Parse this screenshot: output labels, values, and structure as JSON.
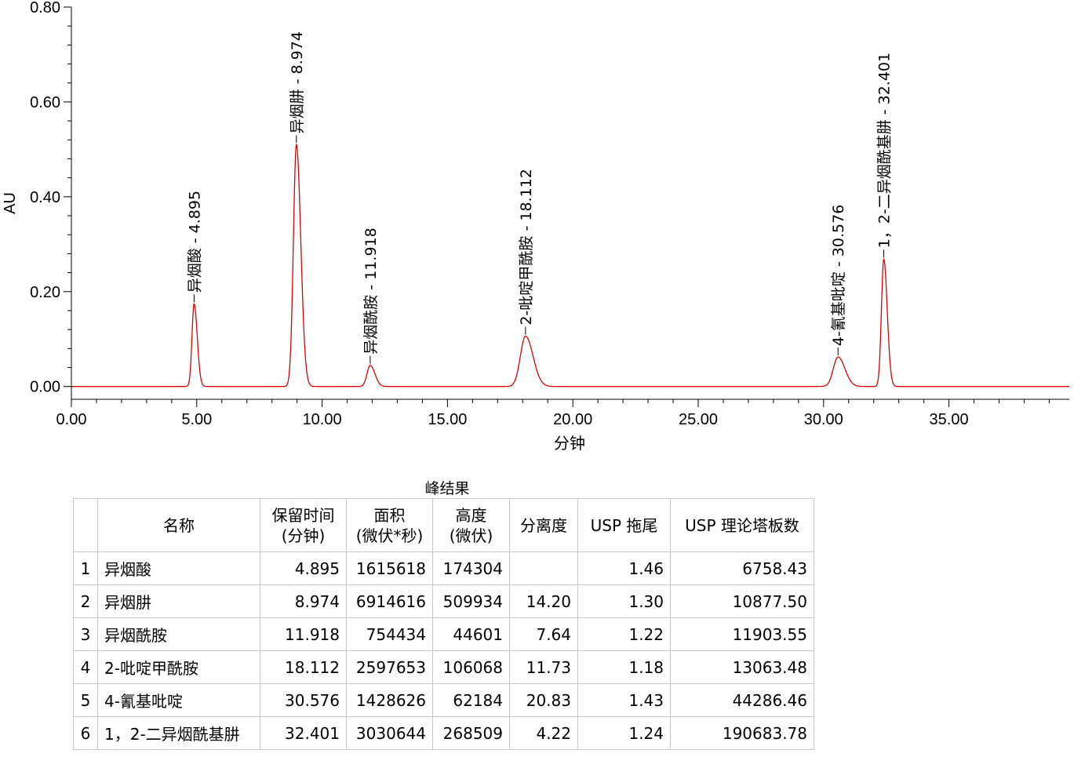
{
  "chart_data": {
    "type": "line",
    "title": "",
    "xlabel": "分钟",
    "ylabel": "AU",
    "xlim": [
      0,
      39.8
    ],
    "ylim": [
      -0.027,
      0.8
    ],
    "x_ticks": [
      "0.00",
      "5.00",
      "10.00",
      "15.00",
      "20.00",
      "25.00",
      "30.00",
      "35.00"
    ],
    "y_ticks": [
      "0.00",
      "0.20",
      "0.40",
      "0.60",
      "0.80"
    ],
    "grid": false,
    "line_color": "#dd0000",
    "peaks": [
      {
        "rt": 4.895,
        "height": 0.1743,
        "width": 0.1,
        "label": "异烟酸 - 4.895"
      },
      {
        "rt": 8.974,
        "height": 0.5099,
        "width": 0.14,
        "label": "异烟肼 - 8.974"
      },
      {
        "rt": 11.918,
        "height": 0.0446,
        "width": 0.15,
        "label": "异烟酰胺 - 11.918"
      },
      {
        "rt": 18.112,
        "height": 0.1061,
        "width": 0.24,
        "label": "2-吡啶甲酰胺 - 18.112"
      },
      {
        "rt": 30.576,
        "height": 0.0622,
        "width": 0.22,
        "label": "4-氰基吡啶 - 30.576"
      },
      {
        "rt": 32.401,
        "height": 0.2685,
        "width": 0.11,
        "label": "1，2-二异烟酰基肼 - 32.401"
      }
    ]
  },
  "table": {
    "title": "峰结果",
    "headers": {
      "name": "名称",
      "rt": "保留时间\n(分钟)",
      "area": "面积\n(微伏*秒)",
      "height": "高度\n(微伏)",
      "resolution": "分离度",
      "tailing": "USP 拖尾",
      "plates": "USP 理论塔板数"
    },
    "rows": [
      {
        "idx": "1",
        "name": "异烟酸",
        "rt": "4.895",
        "area": "1615618",
        "height": "174304",
        "resolution": "",
        "tailing": "1.46",
        "plates": "6758.43"
      },
      {
        "idx": "2",
        "name": "异烟肼",
        "rt": "8.974",
        "area": "6914616",
        "height": "509934",
        "resolution": "14.20",
        "tailing": "1.30",
        "plates": "10877.50"
      },
      {
        "idx": "3",
        "name": "异烟酰胺",
        "rt": "11.918",
        "area": "754434",
        "height": "44601",
        "resolution": "7.64",
        "tailing": "1.22",
        "plates": "11903.55"
      },
      {
        "idx": "4",
        "name": "2-吡啶甲酰胺",
        "rt": "18.112",
        "area": "2597653",
        "height": "106068",
        "resolution": "11.73",
        "tailing": "1.18",
        "plates": "13063.48"
      },
      {
        "idx": "5",
        "name": "4-氰基吡啶",
        "rt": "30.576",
        "area": "1428626",
        "height": "62184",
        "resolution": "20.83",
        "tailing": "1.43",
        "plates": "44286.46"
      },
      {
        "idx": "6",
        "name": "1，2-二异烟酰基肼",
        "rt": "32.401",
        "area": "3030644",
        "height": "268509",
        "resolution": "4.22",
        "tailing": "1.24",
        "plates": "190683.78"
      }
    ]
  }
}
